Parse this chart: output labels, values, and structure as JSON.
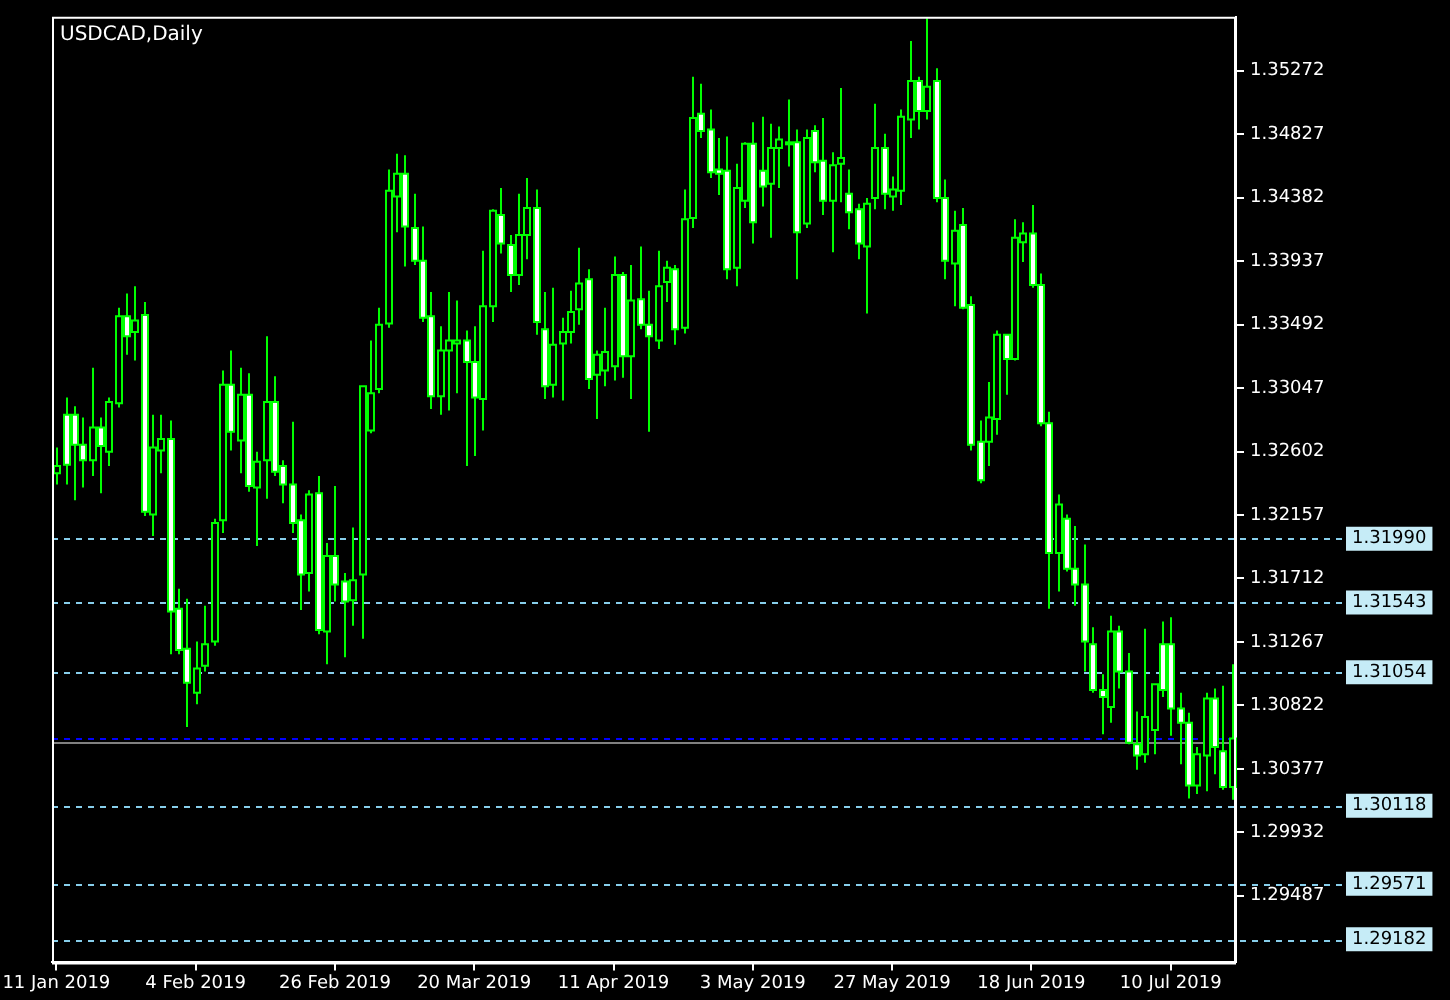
{
  "chart_data": {
    "type": "candlestick",
    "title": "USDCAD,Daily",
    "categories": [
      "11 Jan 2019",
      null,
      null,
      null,
      null,
      null,
      null,
      null,
      null,
      null,
      null,
      null,
      null,
      null,
      null,
      null,
      "4 Feb 2019",
      null,
      null,
      null,
      null,
      null,
      null,
      null,
      null,
      null,
      null,
      null,
      null,
      null,
      null,
      null,
      "26 Feb 2019",
      null,
      null,
      null,
      null,
      null,
      null,
      null,
      null,
      null,
      null,
      null,
      null,
      null,
      null,
      null,
      "20 Mar 2019",
      null,
      null,
      null,
      null,
      null,
      null,
      null,
      null,
      null,
      null,
      null,
      null,
      null,
      null,
      null,
      "11 Apr 2019",
      null,
      null,
      null,
      null,
      null,
      null,
      null,
      null,
      null,
      null,
      null,
      null,
      null,
      null,
      null,
      "3 May 2019",
      null,
      null,
      null,
      null,
      null,
      null,
      null,
      null,
      null,
      null,
      null,
      null,
      null,
      null,
      null,
      "27 May 2019",
      null,
      null,
      null,
      null,
      null,
      null,
      null,
      null,
      null,
      null,
      null,
      null,
      null,
      null,
      null,
      "18 Jun 2019",
      null,
      null,
      null,
      null,
      null,
      null,
      null,
      null,
      null,
      null,
      null,
      null,
      null,
      null,
      null,
      "10 Jul 2019",
      null,
      null,
      null,
      null,
      null,
      null,
      null
    ],
    "ohlc": [
      [
        1.3245,
        1.3263,
        1.3237,
        1.325
      ],
      [
        1.3286,
        1.3298,
        1.3237,
        1.3251
      ],
      [
        1.3286,
        1.3292,
        1.3226,
        1.3265
      ],
      [
        1.3265,
        1.3284,
        1.3235,
        1.3254
      ],
      [
        1.3254,
        1.3319,
        1.3243,
        1.3277
      ],
      [
        1.3277,
        1.3284,
        1.3231,
        1.3264
      ],
      [
        1.326,
        1.3298,
        1.325,
        1.3295
      ],
      [
        1.3294,
        1.3361,
        1.3291,
        1.3355
      ],
      [
        1.3355,
        1.3371,
        1.3328,
        1.3341
      ],
      [
        1.3344,
        1.3376,
        1.3324,
        1.3352
      ],
      [
        1.3356,
        1.3365,
        1.3215,
        1.3218
      ],
      [
        1.3216,
        1.3286,
        1.3201,
        1.3263
      ],
      [
        1.3261,
        1.3286,
        1.3245,
        1.3269
      ],
      [
        1.3269,
        1.3282,
        1.3118,
        1.3148
      ],
      [
        1.315,
        1.3164,
        1.3118,
        1.3121
      ],
      [
        1.3122,
        1.3157,
        1.3067,
        1.3098
      ],
      [
        1.3091,
        1.3127,
        1.3083,
        1.3108
      ],
      [
        1.311,
        1.3152,
        1.3106,
        1.3125
      ],
      [
        1.3127,
        1.3213,
        1.3124,
        1.321
      ],
      [
        1.3212,
        1.3317,
        1.3203,
        1.3307
      ],
      [
        1.3307,
        1.3331,
        1.3261,
        1.3274
      ],
      [
        1.3268,
        1.3319,
        1.3245,
        1.33
      ],
      [
        1.33,
        1.3315,
        1.3232,
        1.3236
      ],
      [
        1.3235,
        1.326,
        1.3194,
        1.3253
      ],
      [
        1.3254,
        1.3341,
        1.3227,
        1.3295
      ],
      [
        1.3295,
        1.3313,
        1.3243,
        1.3246
      ],
      [
        1.325,
        1.3254,
        1.3224,
        1.3237
      ],
      [
        1.3237,
        1.3281,
        1.3203,
        1.321
      ],
      [
        1.3212,
        1.3216,
        1.3149,
        1.3174
      ],
      [
        1.3175,
        1.3233,
        1.3162,
        1.323
      ],
      [
        1.3231,
        1.3243,
        1.3132,
        1.3135
      ],
      [
        1.3134,
        1.3196,
        1.3111,
        1.3187
      ],
      [
        1.3187,
        1.3236,
        1.3155,
        1.3167
      ],
      [
        1.3169,
        1.3175,
        1.3116,
        1.3155
      ],
      [
        1.3156,
        1.3207,
        1.3138,
        1.317
      ],
      [
        1.3174,
        1.3306,
        1.3129,
        1.3306
      ],
      [
        1.3275,
        1.3338,
        1.3273,
        1.3301
      ],
      [
        1.3304,
        1.3361,
        1.3301,
        1.3349
      ],
      [
        1.335,
        1.3458,
        1.3347,
        1.3443
      ],
      [
        1.3439,
        1.3469,
        1.3414,
        1.3455
      ],
      [
        1.3455,
        1.3468,
        1.339,
        1.3418
      ],
      [
        1.3417,
        1.3441,
        1.3391,
        1.3394
      ],
      [
        1.3394,
        1.3418,
        1.3351,
        1.3354
      ],
      [
        1.3355,
        1.3372,
        1.329,
        1.3299
      ],
      [
        1.3299,
        1.3348,
        1.3286,
        1.3331
      ],
      [
        1.3331,
        1.3372,
        1.3289,
        1.3338
      ],
      [
        1.3336,
        1.3366,
        1.3301,
        1.3338
      ],
      [
        1.3338,
        1.3345,
        1.325,
        1.3323
      ],
      [
        1.3323,
        1.3348,
        1.3257,
        1.3298
      ],
      [
        1.3297,
        1.3401,
        1.3275,
        1.3362
      ],
      [
        1.3362,
        1.343,
        1.3351,
        1.3429
      ],
      [
        1.3426,
        1.3445,
        1.3399,
        1.3406
      ],
      [
        1.3405,
        1.3412,
        1.3372,
        1.3384
      ],
      [
        1.3384,
        1.3441,
        1.3377,
        1.3412
      ],
      [
        1.3412,
        1.3452,
        1.3395,
        1.3431
      ],
      [
        1.3431,
        1.3444,
        1.3342,
        1.3351
      ],
      [
        1.3346,
        1.3372,
        1.3297,
        1.3306
      ],
      [
        1.3307,
        1.3375,
        1.3298,
        1.3335
      ],
      [
        1.3336,
        1.3354,
        1.3296,
        1.3344
      ],
      [
        1.3344,
        1.3373,
        1.3336,
        1.3358
      ],
      [
        1.336,
        1.3403,
        1.3349,
        1.3378
      ],
      [
        1.3381,
        1.3388,
        1.3304,
        1.3311
      ],
      [
        1.3314,
        1.3331,
        1.3283,
        1.3328
      ],
      [
        1.3317,
        1.3361,
        1.3306,
        1.333
      ],
      [
        1.332,
        1.3397,
        1.331,
        1.3384
      ],
      [
        1.3384,
        1.3386,
        1.3312,
        1.3327
      ],
      [
        1.3327,
        1.3391,
        1.3297,
        1.3366
      ],
      [
        1.3367,
        1.3404,
        1.3346,
        1.3349
      ],
      [
        1.3349,
        1.3373,
        1.3274,
        1.3341
      ],
      [
        1.3338,
        1.3401,
        1.3332,
        1.3376
      ],
      [
        1.3379,
        1.3394,
        1.3365,
        1.3389
      ],
      [
        1.3388,
        1.3391,
        1.3335,
        1.3346
      ],
      [
        1.3347,
        1.3444,
        1.3343,
        1.3423
      ],
      [
        1.3424,
        1.3523,
        1.3417,
        1.3494
      ],
      [
        1.3497,
        1.3518,
        1.348,
        1.3485
      ],
      [
        1.3486,
        1.35,
        1.3452,
        1.3456
      ],
      [
        1.3458,
        1.348,
        1.344,
        1.3455
      ],
      [
        1.3457,
        1.3481,
        1.3381,
        1.3388
      ],
      [
        1.3389,
        1.3462,
        1.3376,
        1.3445
      ],
      [
        1.3436,
        1.3477,
        1.3431,
        1.3476
      ],
      [
        1.3476,
        1.3491,
        1.3406,
        1.3421
      ],
      [
        1.3457,
        1.3495,
        1.3432,
        1.3446
      ],
      [
        1.3448,
        1.349,
        1.341,
        1.3473
      ],
      [
        1.3473,
        1.3488,
        1.3445,
        1.3479
      ],
      [
        1.3477,
        1.3507,
        1.346,
        1.3476
      ],
      [
        1.3477,
        1.3486,
        1.3381,
        1.3414
      ],
      [
        1.342,
        1.3486,
        1.3417,
        1.348
      ],
      [
        1.3485,
        1.3489,
        1.3456,
        1.3463
      ],
      [
        1.3464,
        1.3494,
        1.3426,
        1.3436
      ],
      [
        1.3436,
        1.347,
        1.34,
        1.3461
      ],
      [
        1.3462,
        1.3515,
        1.3435,
        1.3466
      ],
      [
        1.3441,
        1.3458,
        1.3416,
        1.3428
      ],
      [
        1.343,
        1.3434,
        1.3395,
        1.3406
      ],
      [
        1.3404,
        1.3438,
        1.3357,
        1.3434
      ],
      [
        1.3438,
        1.3504,
        1.343,
        1.3473
      ],
      [
        1.3473,
        1.3483,
        1.343,
        1.3441
      ],
      [
        1.3439,
        1.3453,
        1.3429,
        1.3444
      ],
      [
        1.3443,
        1.35,
        1.3433,
        1.3495
      ],
      [
        1.3493,
        1.3548,
        1.348,
        1.352
      ],
      [
        1.352,
        1.3523,
        1.3486,
        1.3499
      ],
      [
        1.3499,
        1.3564,
        1.3493,
        1.3516
      ],
      [
        1.352,
        1.3529,
        1.3435,
        1.3438
      ],
      [
        1.3438,
        1.3451,
        1.3381,
        1.3394
      ],
      [
        1.3392,
        1.3429,
        1.3362,
        1.3415
      ],
      [
        1.3419,
        1.3431,
        1.336,
        1.3361
      ],
      [
        1.3363,
        1.3369,
        1.3261,
        1.3265
      ],
      [
        1.3267,
        1.3282,
        1.3238,
        1.324
      ],
      [
        1.3267,
        1.3309,
        1.325,
        1.3284
      ],
      [
        1.3283,
        1.3345,
        1.3272,
        1.3342
      ],
      [
        1.3342,
        1.3342,
        1.33,
        1.3325
      ],
      [
        1.3325,
        1.3423,
        1.3324,
        1.341
      ],
      [
        1.3407,
        1.3421,
        1.3393,
        1.3413
      ],
      [
        1.3413,
        1.3433,
        1.3375,
        1.3377
      ],
      [
        1.3377,
        1.3385,
        1.3278,
        1.328
      ],
      [
        1.328,
        1.3288,
        1.315,
        1.3189
      ],
      [
        1.3189,
        1.323,
        1.3162,
        1.3223
      ],
      [
        1.3213,
        1.3216,
        1.3176,
        1.3178
      ],
      [
        1.3178,
        1.3208,
        1.3152,
        1.3167
      ],
      [
        1.3167,
        1.3195,
        1.3106,
        1.3127
      ],
      [
        1.3125,
        1.3137,
        1.3091,
        1.3093
      ],
      [
        1.3093,
        1.3104,
        1.3062,
        1.3088
      ],
      [
        1.3081,
        1.3145,
        1.307,
        1.3134
      ],
      [
        1.3134,
        1.3138,
        1.3094,
        1.3106
      ],
      [
        1.3106,
        1.3119,
        1.3055,
        1.3056
      ],
      [
        1.3055,
        1.3078,
        1.3037,
        1.3047
      ],
      [
        1.3048,
        1.3136,
        1.3042,
        1.3074
      ],
      [
        1.3065,
        1.3097,
        1.3048,
        1.3097
      ],
      [
        1.3125,
        1.3141,
        1.3088,
        1.3093
      ],
      [
        1.3125,
        1.3144,
        1.3061,
        1.308
      ],
      [
        1.308,
        1.3091,
        1.3041,
        1.307
      ],
      [
        1.307,
        1.3077,
        1.3017,
        1.3026
      ],
      [
        1.3026,
        1.3053,
        1.302,
        1.3048
      ],
      [
        1.3047,
        1.3091,
        1.3022,
        1.3087
      ],
      [
        1.3087,
        1.3094,
        1.3034,
        1.3053
      ],
      [
        1.305,
        1.3096,
        1.3023,
        1.3025
      ],
      [
        1.3025,
        1.3111,
        1.3016,
        1.3059
      ]
    ],
    "ylim": [
      1.2902,
      1.3565
    ],
    "yticks": [
      1.35272,
      1.34827,
      1.34382,
      1.33937,
      1.33492,
      1.33047,
      1.32602,
      1.32157,
      1.31712,
      1.31267,
      1.30822,
      1.30377,
      1.29932,
      1.29487
    ],
    "grid": false,
    "legend": false,
    "ref_lines": [
      {
        "axis": "y",
        "value": 1.3199,
        "label": "1.31990",
        "color": "#87ceeb",
        "line_style": "dashed"
      },
      {
        "axis": "y",
        "value": 1.31543,
        "label": "1.31543",
        "color": "#87ceeb",
        "line_style": "dashed"
      },
      {
        "axis": "y",
        "value": 1.31054,
        "label": "1.31054",
        "color": "#87ceeb",
        "line_style": "dashed"
      },
      {
        "axis": "y",
        "value": 1.3059,
        "color": "#0000ff",
        "line_style": "dashed"
      },
      {
        "axis": "y",
        "value": 1.3056,
        "color": "#808080",
        "line_style": "solid"
      },
      {
        "axis": "y",
        "value": 1.30118,
        "label": "1.30118",
        "color": "#87ceeb",
        "line_style": "dashed"
      },
      {
        "axis": "y",
        "value": 1.29571,
        "label": "1.29571",
        "color": "#87ceeb",
        "line_style": "dashed"
      },
      {
        "axis": "y",
        "value": 1.29182,
        "label": "1.29182",
        "color": "#87ceeb",
        "line_style": "dashed"
      }
    ]
  }
}
